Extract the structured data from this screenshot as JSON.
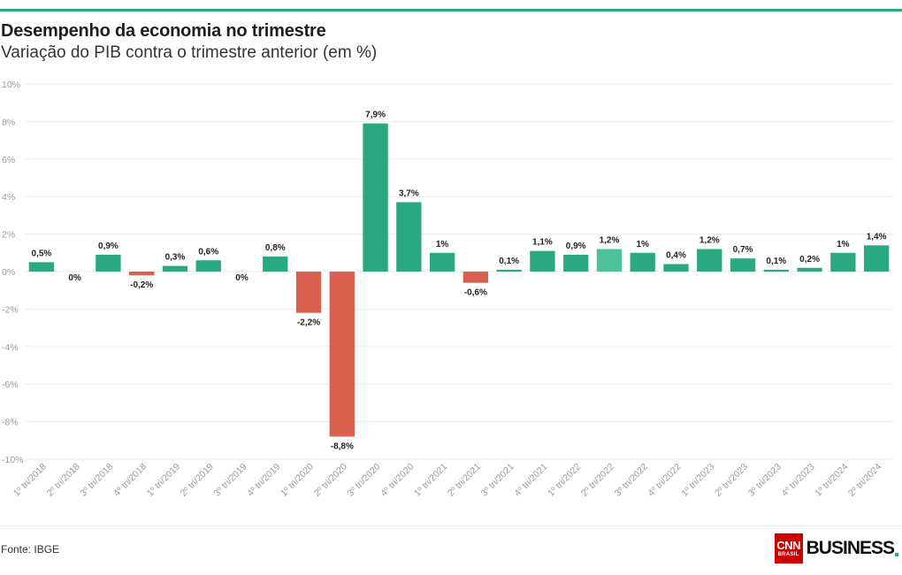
{
  "header": {
    "title": "Desempenho da economia no trimestre",
    "subtitle": "Variação do PIB contra o trimestre anterior (em %)"
  },
  "footer": {
    "source": "Fonte: IBGE",
    "logo_cnn": "CNN",
    "logo_brasil": "BRASIL",
    "logo_business": "BUSINESS"
  },
  "colors": {
    "accent": "#2aa882",
    "positive": "#2aa882",
    "highlight": "#4cc29a",
    "negative": "#d9604f",
    "grid": "#ececec",
    "tick_text": "#9a9a9a",
    "label_text": "#222222"
  },
  "chart_data": {
    "type": "bar",
    "title": "Desempenho da economia no trimestre",
    "subtitle": "Variação do PIB contra o trimestre anterior (em %)",
    "xlabel": "",
    "ylabel": "",
    "ylim": [
      -10,
      10
    ],
    "yticks": [
      10,
      8,
      6,
      4,
      2,
      0,
      -2,
      -4,
      -6,
      -8,
      -10
    ],
    "ytick_labels": [
      "10%",
      "8%",
      "6%",
      "4%",
      "2%",
      "0%",
      "-2%",
      "-4%",
      "-6%",
      "-8%",
      "-10%"
    ],
    "grid": true,
    "legend": "none",
    "categories": [
      "1º tri/2018",
      "2º tri/2018",
      "3º tri/2018",
      "4º tri/2018",
      "1º tri/2019",
      "2º tri/2019",
      "3º tri/2019",
      "4º tri/2019",
      "1º tri/2020",
      "2º tri/2020",
      "3º tri/2020",
      "4º tri/2020",
      "1º tri/2021",
      "2º tri/2021",
      "3º tri/2021",
      "4º tri/2021",
      "1º tri/2022",
      "2º tri/2022",
      "3º tri/2022",
      "4º tri/2022",
      "1º tri/2023",
      "2º tri/2023",
      "3º tri/2023",
      "4º tri/2023",
      "1º tri/2024",
      "2º tri/2024"
    ],
    "values": [
      0.5,
      0,
      0.9,
      -0.2,
      0.3,
      0.6,
      0,
      0.8,
      -2.2,
      -8.8,
      7.9,
      3.7,
      1,
      -0.6,
      0.1,
      1.1,
      0.9,
      1.2,
      1,
      0.4,
      1.2,
      0.7,
      0.1,
      0.2,
      1,
      1.4
    ],
    "data_labels": [
      "0,5%",
      "0%",
      "0,9%",
      "-0,2%",
      "0,3%",
      "0,6%",
      "0%",
      "0,8%",
      "-2,2%",
      "-8,8%",
      "7,9%",
      "3,7%",
      "1%",
      "-0,6%",
      "0,1%",
      "1,1%",
      "0,9%",
      "1,2%",
      "1%",
      "0,4%",
      "1,2%",
      "0,7%",
      "0,1%",
      "0,2%",
      "1%",
      "1,4%"
    ],
    "highlighted_index": 17
  }
}
